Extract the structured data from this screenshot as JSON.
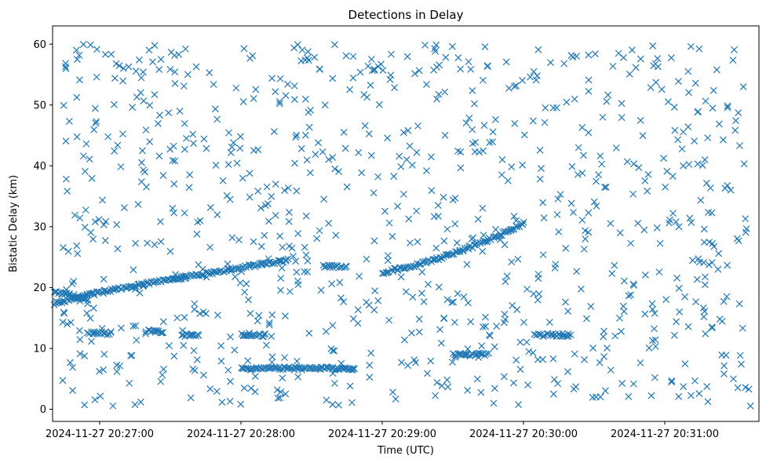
{
  "chart_data": {
    "type": "scatter",
    "title": "Detections in Delay",
    "xlabel": "Time (UTC)",
    "ylabel": "Bistatic Delay (km)",
    "marker": "x",
    "color": "#1f77b4",
    "grid": false,
    "legend": "none",
    "x_start": "2024-11-27 20:26:40",
    "x_end": "2024-11-27 20:31:40",
    "ylim": [
      -2,
      63
    ],
    "xticks": [
      "2024-11-27 20:27:00",
      "2024-11-27 20:28:00",
      "2024-11-27 20:29:00",
      "2024-11-27 20:30:00",
      "2024-11-27 20:31:00"
    ],
    "yticks": [
      0,
      10,
      20,
      30,
      40,
      50,
      60
    ],
    "tracks": [
      {
        "from": "2024-11-27 20:26:40",
        "to": "2024-11-27 20:28:20",
        "y_from": 17.0,
        "y_to": 24.5,
        "curve": "sqrt"
      },
      {
        "from": "2024-11-27 20:26:40",
        "to": "2024-11-27 20:26:55",
        "y_from": 19.5,
        "y_to": 18.0
      },
      {
        "from": "2024-11-27 20:29:00",
        "to": "2024-11-27 20:30:00",
        "y_from": 22.5,
        "y_to": 30.5,
        "curve": "accel"
      },
      {
        "from": "2024-11-27 20:28:00",
        "to": "2024-11-27 20:28:48",
        "y_from": 6.7,
        "y_to": 6.7
      },
      {
        "from": "2024-11-27 20:27:20",
        "to": "2024-11-27 20:27:27",
        "y_from": 12.8,
        "y_to": 12.8
      },
      {
        "from": "2024-11-27 20:27:35",
        "to": "2024-11-27 20:27:42",
        "y_from": 12.2,
        "y_to": 12.2
      },
      {
        "from": "2024-11-27 20:28:00",
        "to": "2024-11-27 20:28:10",
        "y_from": 12.2,
        "y_to": 12.2
      },
      {
        "from": "2024-11-27 20:29:30",
        "to": "2024-11-27 20:29:45",
        "y_from": 9.0,
        "y_to": 9.0
      },
      {
        "from": "2024-11-27 20:30:05",
        "to": "2024-11-27 20:30:20",
        "y_from": 12.2,
        "y_to": 12.2
      },
      {
        "from": "2024-11-27 20:26:55",
        "to": "2024-11-27 20:27:05",
        "y_from": 12.5,
        "y_to": 12.5
      },
      {
        "from": "2024-11-27 20:28:35",
        "to": "2024-11-27 20:28:45",
        "y_from": 23.5,
        "y_to": 23.5
      }
    ],
    "noise": {
      "count": 900,
      "y_range": [
        0.5,
        60
      ]
    }
  }
}
